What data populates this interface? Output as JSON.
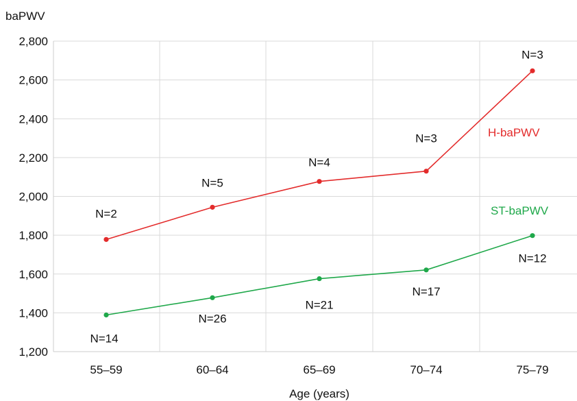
{
  "chart_data": {
    "type": "line",
    "ylabel": "baPWV",
    "xlabel": "Age (years)",
    "categories": [
      "55–59",
      "60–64",
      "65–69",
      "70–74",
      "75–79"
    ],
    "y_ticks": [
      "1,200",
      "1,400",
      "1,600",
      "1,800",
      "2,000",
      "2,200",
      "2,400",
      "2,600",
      "2,800"
    ],
    "ylim": [
      1200,
      2800
    ],
    "grid": true,
    "series": [
      {
        "name": "H-baPWV",
        "color": "#e32b2b",
        "values": [
          1778,
          1944,
          2077,
          2130,
          2647
        ],
        "n_labels": [
          "N=2",
          "N=5",
          "N=4",
          "N=3",
          "N=3"
        ]
      },
      {
        "name": "ST-baPWV",
        "color": "#1fa84a",
        "values": [
          1389,
          1478,
          1576,
          1621,
          1798
        ],
        "n_labels": [
          "N=14",
          "N=26",
          "N=21",
          "N=17",
          "N=12"
        ]
      }
    ]
  }
}
